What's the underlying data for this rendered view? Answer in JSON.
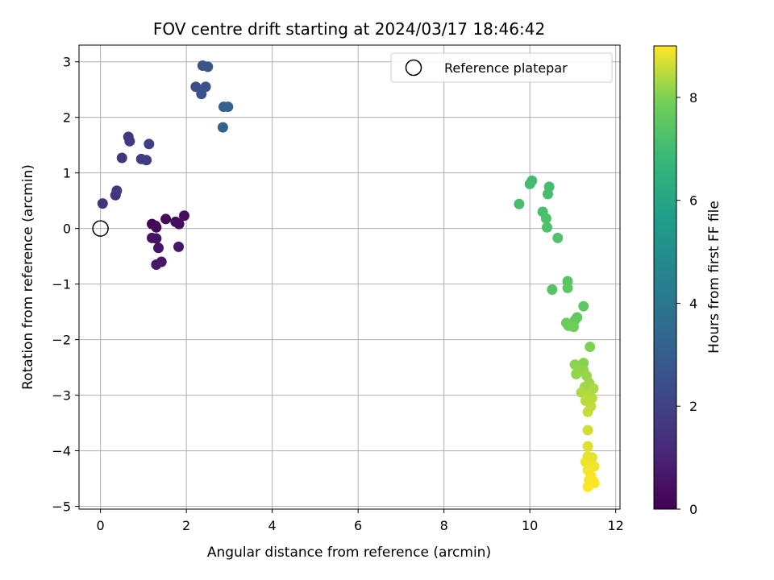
{
  "chart_data": {
    "type": "scatter",
    "title": "FOV centre drift starting at 2024/03/17 18:46:42",
    "xlabel": "Angular distance from reference (arcmin)",
    "ylabel": "Rotation from reference (arcmin)",
    "xlim": [
      -0.5,
      12.1
    ],
    "ylim": [
      -5.05,
      3.3
    ],
    "xticks": [
      0,
      2,
      4,
      6,
      8,
      10,
      12
    ],
    "yticks": [
      -5,
      -4,
      -3,
      -2,
      -1,
      0,
      1,
      2,
      3
    ],
    "grid": true,
    "legend": {
      "placement": "top-right",
      "entries": [
        "Reference platepar"
      ]
    },
    "reference_point": {
      "name": "Reference platepar",
      "x": 0,
      "y": 0
    },
    "colormap": "viridis",
    "colorbar": {
      "label": "Hours from first FF file",
      "range": [
        0,
        9
      ],
      "ticks": [
        0,
        2,
        4,
        6,
        8
      ]
    },
    "series": [
      {
        "points": [
          {
            "x": 1.2,
            "y": 0.08,
            "c": 0.1
          },
          {
            "x": 1.28,
            "y": 0.05,
            "c": 0.15
          },
          {
            "x": 1.3,
            "y": 0.02,
            "c": 0.2
          },
          {
            "x": 1.52,
            "y": 0.17,
            "c": 0.25
          },
          {
            "x": 1.75,
            "y": 0.12,
            "c": 0.3
          },
          {
            "x": 1.83,
            "y": 0.08,
            "c": 0.35
          },
          {
            "x": 1.95,
            "y": 0.23,
            "c": 0.4
          },
          {
            "x": 1.2,
            "y": -0.17,
            "c": 0.45
          },
          {
            "x": 1.3,
            "y": -0.18,
            "c": 0.5
          },
          {
            "x": 1.35,
            "y": -0.35,
            "c": 0.55
          },
          {
            "x": 1.82,
            "y": -0.33,
            "c": 0.6
          },
          {
            "x": 1.42,
            "y": -0.6,
            "c": 0.65
          },
          {
            "x": 1.3,
            "y": -0.65,
            "c": 0.7
          },
          {
            "x": 0.05,
            "y": 0.45,
            "c": 1.5
          },
          {
            "x": 0.35,
            "y": 0.6,
            "c": 1.55
          },
          {
            "x": 0.38,
            "y": 0.68,
            "c": 1.6
          },
          {
            "x": 0.5,
            "y": 1.27,
            "c": 1.65
          },
          {
            "x": 0.65,
            "y": 1.65,
            "c": 1.7
          },
          {
            "x": 0.68,
            "y": 1.57,
            "c": 1.75
          },
          {
            "x": 0.95,
            "y": 1.25,
            "c": 1.8
          },
          {
            "x": 1.07,
            "y": 1.23,
            "c": 1.85
          },
          {
            "x": 1.13,
            "y": 1.52,
            "c": 1.9
          },
          {
            "x": 2.22,
            "y": 2.55,
            "c": 2.5
          },
          {
            "x": 2.35,
            "y": 2.42,
            "c": 2.55
          },
          {
            "x": 2.45,
            "y": 2.55,
            "c": 2.6
          },
          {
            "x": 2.38,
            "y": 2.93,
            "c": 2.65
          },
          {
            "x": 2.5,
            "y": 2.91,
            "c": 2.7
          },
          {
            "x": 2.87,
            "y": 2.19,
            "c": 3.1
          },
          {
            "x": 2.97,
            "y": 2.19,
            "c": 3.15
          },
          {
            "x": 2.85,
            "y": 1.82,
            "c": 3.2
          },
          {
            "x": 9.75,
            "y": 0.44,
            "c": 7.1
          },
          {
            "x": 10.0,
            "y": 0.8,
            "c": 7.05
          },
          {
            "x": 10.05,
            "y": 0.86,
            "c": 7.0
          },
          {
            "x": 10.45,
            "y": 0.75,
            "c": 7.05
          },
          {
            "x": 10.42,
            "y": 0.62,
            "c": 7.1
          },
          {
            "x": 10.3,
            "y": 0.3,
            "c": 7.15
          },
          {
            "x": 10.38,
            "y": 0.18,
            "c": 7.2
          },
          {
            "x": 10.4,
            "y": 0.02,
            "c": 7.25
          },
          {
            "x": 10.65,
            "y": -0.17,
            "c": 7.3
          },
          {
            "x": 10.52,
            "y": -1.1,
            "c": 7.4
          },
          {
            "x": 10.88,
            "y": -0.95,
            "c": 7.45
          },
          {
            "x": 10.88,
            "y": -1.07,
            "c": 7.5
          },
          {
            "x": 11.25,
            "y": -1.4,
            "c": 7.6
          },
          {
            "x": 11.1,
            "y": -1.6,
            "c": 7.65
          },
          {
            "x": 11.05,
            "y": -1.65,
            "c": 7.7
          },
          {
            "x": 10.85,
            "y": -1.7,
            "c": 7.75
          },
          {
            "x": 10.9,
            "y": -1.75,
            "c": 7.8
          },
          {
            "x": 11.02,
            "y": -1.77,
            "c": 7.85
          },
          {
            "x": 11.4,
            "y": -2.13,
            "c": 8.0
          },
          {
            "x": 11.25,
            "y": -2.42,
            "c": 8.05
          },
          {
            "x": 11.05,
            "y": -2.45,
            "c": 8.1
          },
          {
            "x": 11.15,
            "y": -2.52,
            "c": 8.12
          },
          {
            "x": 11.25,
            "y": -2.55,
            "c": 8.15
          },
          {
            "x": 11.08,
            "y": -2.62,
            "c": 8.18
          },
          {
            "x": 11.32,
            "y": -2.65,
            "c": 8.2
          },
          {
            "x": 11.38,
            "y": -2.78,
            "c": 8.25
          },
          {
            "x": 11.28,
            "y": -2.85,
            "c": 8.3
          },
          {
            "x": 11.48,
            "y": -2.88,
            "c": 8.35
          },
          {
            "x": 11.2,
            "y": -2.95,
            "c": 8.38
          },
          {
            "x": 11.35,
            "y": -3.0,
            "c": 8.4
          },
          {
            "x": 11.45,
            "y": -3.05,
            "c": 8.45
          },
          {
            "x": 11.3,
            "y": -3.1,
            "c": 8.48
          },
          {
            "x": 11.42,
            "y": -3.2,
            "c": 8.5
          },
          {
            "x": 11.35,
            "y": -3.3,
            "c": 8.55
          },
          {
            "x": 11.35,
            "y": -3.63,
            "c": 8.65
          },
          {
            "x": 11.35,
            "y": -3.92,
            "c": 8.75
          },
          {
            "x": 11.35,
            "y": -4.1,
            "c": 8.8
          },
          {
            "x": 11.45,
            "y": -4.12,
            "c": 8.82
          },
          {
            "x": 11.3,
            "y": -4.2,
            "c": 8.85
          },
          {
            "x": 11.4,
            "y": -4.25,
            "c": 8.88
          },
          {
            "x": 11.5,
            "y": -4.28,
            "c": 8.9
          },
          {
            "x": 11.35,
            "y": -4.35,
            "c": 8.92
          },
          {
            "x": 11.42,
            "y": -4.45,
            "c": 8.95
          },
          {
            "x": 11.38,
            "y": -4.52,
            "c": 8.97
          },
          {
            "x": 11.48,
            "y": -4.55,
            "c": 8.98
          },
          {
            "x": 11.5,
            "y": -4.58,
            "c": 9.0
          },
          {
            "x": 11.35,
            "y": -4.65,
            "c": 9.0
          }
        ]
      }
    ]
  }
}
